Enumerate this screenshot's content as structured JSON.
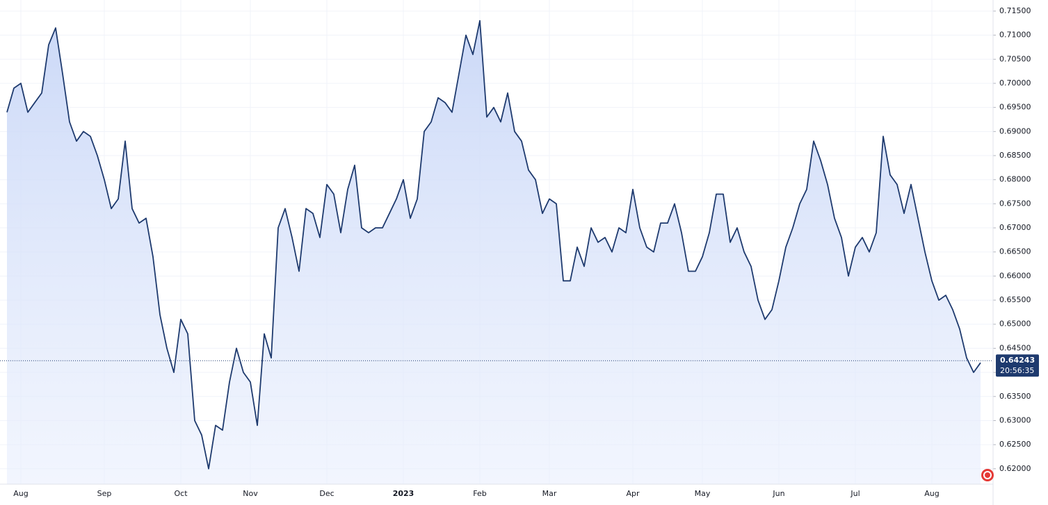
{
  "chart_data": {
    "type": "area",
    "color": "#1e3a6e",
    "grid": true,
    "categories": [
      null,
      null,
      "Aug",
      null,
      null,
      null,
      null,
      null,
      null,
      null,
      null,
      null,
      null,
      null,
      "Sep",
      null,
      null,
      null,
      null,
      null,
      null,
      null,
      null,
      null,
      null,
      "Oct",
      null,
      null,
      null,
      null,
      null,
      null,
      null,
      null,
      null,
      "Nov",
      null,
      null,
      null,
      null,
      null,
      null,
      null,
      null,
      null,
      null,
      "Dec",
      null,
      null,
      null,
      null,
      null,
      null,
      null,
      null,
      null,
      null,
      "2023",
      null,
      null,
      null,
      null,
      null,
      null,
      null,
      null,
      null,
      null,
      "Feb",
      null,
      null,
      null,
      null,
      null,
      null,
      null,
      null,
      null,
      "Mar",
      null,
      null,
      null,
      null,
      null,
      null,
      null,
      null,
      null,
      null,
      null,
      "Apr",
      null,
      null,
      null,
      null,
      null,
      null,
      null,
      null,
      null,
      "May",
      null,
      null,
      null,
      null,
      null,
      null,
      null,
      null,
      null,
      null,
      "Jun",
      null,
      null,
      null,
      null,
      null,
      null,
      null,
      null,
      null,
      null,
      "Jul",
      null,
      null,
      null,
      null,
      null,
      null,
      null,
      null,
      null,
      null,
      "Aug",
      null,
      null,
      null,
      null,
      null,
      null,
      null
    ],
    "values": [
      0.694,
      0.699,
      0.7,
      0.694,
      0.696,
      0.698,
      0.708,
      0.7115,
      0.702,
      0.692,
      0.688,
      0.69,
      0.689,
      0.685,
      0.68,
      0.674,
      0.676,
      0.688,
      0.674,
      0.671,
      0.672,
      0.664,
      0.652,
      0.645,
      0.64,
      0.651,
      0.648,
      0.63,
      0.627,
      0.62,
      0.629,
      0.628,
      0.638,
      0.645,
      0.64,
      0.638,
      0.629,
      0.648,
      0.643,
      0.67,
      0.674,
      0.668,
      0.661,
      0.674,
      0.673,
      0.668,
      0.679,
      0.677,
      0.669,
      0.678,
      0.683,
      0.67,
      0.669,
      0.67,
      0.67,
      0.673,
      0.676,
      0.68,
      0.672,
      0.676,
      0.69,
      0.692,
      0.697,
      0.696,
      0.694,
      0.702,
      0.71,
      0.706,
      0.713,
      0.693,
      0.695,
      0.692,
      0.698,
      0.69,
      0.688,
      0.682,
      0.68,
      0.673,
      0.676,
      0.675,
      0.659,
      0.659,
      0.666,
      0.662,
      0.67,
      0.667,
      0.668,
      0.665,
      0.67,
      0.669,
      0.678,
      0.67,
      0.666,
      0.665,
      0.671,
      0.671,
      0.675,
      0.669,
      0.661,
      0.661,
      0.664,
      0.669,
      0.677,
      0.677,
      0.667,
      0.67,
      0.665,
      0.662,
      0.655,
      0.651,
      0.653,
      0.659,
      0.666,
      0.67,
      0.675,
      0.678,
      0.688,
      0.684,
      0.679,
      0.672,
      0.668,
      0.66,
      0.666,
      0.668,
      0.665,
      0.669,
      0.689,
      0.681,
      0.679,
      0.673,
      0.679,
      0.672,
      0.665,
      0.659,
      0.655,
      0.656,
      0.653,
      0.649,
      0.643,
      0.64,
      0.642
    ],
    "ylim": [
      0.6168,
      0.7173
    ],
    "yticks": [
      {
        "value": 0.62,
        "label": "0.62000"
      },
      {
        "value": 0.625,
        "label": "0.62500"
      },
      {
        "value": 0.63,
        "label": "0.63000"
      },
      {
        "value": 0.635,
        "label": "0.63500"
      },
      {
        "value": 0.64,
        "label": "0.64000"
      },
      {
        "value": 0.645,
        "label": "0.64500"
      },
      {
        "value": 0.65,
        "label": "0.65000"
      },
      {
        "value": 0.655,
        "label": "0.65500"
      },
      {
        "value": 0.66,
        "label": "0.66000"
      },
      {
        "value": 0.665,
        "label": "0.66500"
      },
      {
        "value": 0.67,
        "label": "0.67000"
      },
      {
        "value": 0.675,
        "label": "0.67500"
      },
      {
        "value": 0.68,
        "label": "0.68000"
      },
      {
        "value": 0.685,
        "label": "0.68500"
      },
      {
        "value": 0.69,
        "label": "0.69000"
      },
      {
        "value": 0.695,
        "label": "0.69500"
      },
      {
        "value": 0.7,
        "label": "0.70000"
      },
      {
        "value": 0.705,
        "label": "0.70500"
      },
      {
        "value": 0.71,
        "label": "0.71000"
      },
      {
        "value": 0.715,
        "label": "0.71500"
      }
    ],
    "last_value": 0.64243,
    "last_time": "20:56:35"
  }
}
